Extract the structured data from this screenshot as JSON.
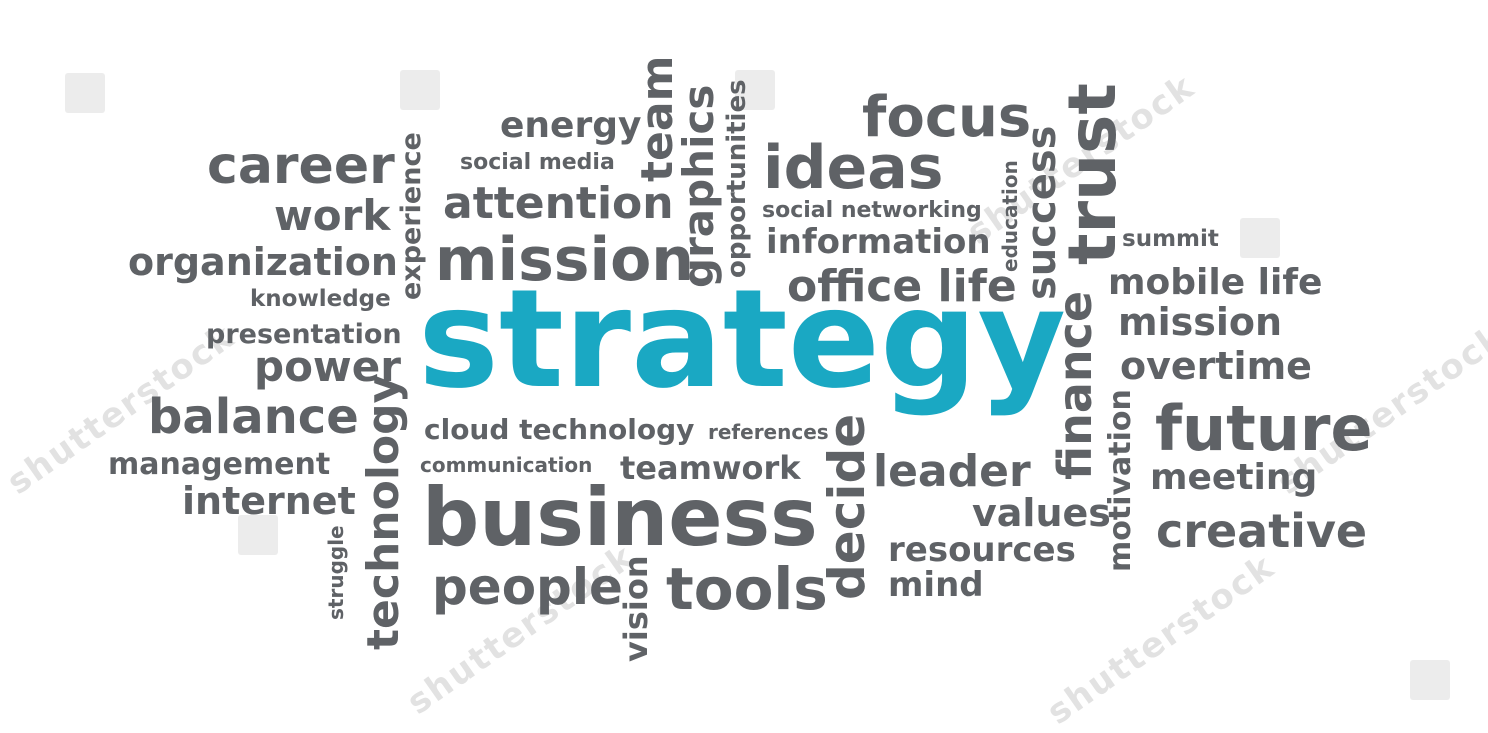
{
  "word_cloud": {
    "highlight_color": "#1aa8c3",
    "word_color": "#5f6266",
    "main_word": "strategy",
    "words": {
      "energy": "energy",
      "team": "team",
      "opportunities": "opportunities",
      "focus": "focus",
      "trust": "trust",
      "career": "career",
      "social_media": "social media",
      "graphics": "graphics",
      "ideas": "ideas",
      "success": "success",
      "experience": "experience",
      "work": "work",
      "attention": "attention",
      "social_networking": "social networking",
      "education": "education",
      "summit": "summit",
      "organization": "organization",
      "mission_center": "mission",
      "information": "information",
      "knowledge": "knowledge",
      "office_life": "office life",
      "mobile_life": "mobile life",
      "mission_right": "mission",
      "presentation": "presentation",
      "power": "power",
      "finance": "finance",
      "overtime": "overtime",
      "balance": "balance",
      "technology": "technology",
      "cloud_technology": "cloud technology",
      "references": "references",
      "future": "future",
      "motivation": "motivation",
      "management": "management",
      "communication": "communication",
      "teamwork": "teamwork",
      "decide": "decide",
      "leader": "leader",
      "meeting": "meeting",
      "internet": "internet",
      "business": "business",
      "values": "values",
      "creative": "creative",
      "struggle": "struggle",
      "resources": "resources",
      "people": "people",
      "vision": "vision",
      "tools": "tools",
      "mind": "mind"
    }
  }
}
